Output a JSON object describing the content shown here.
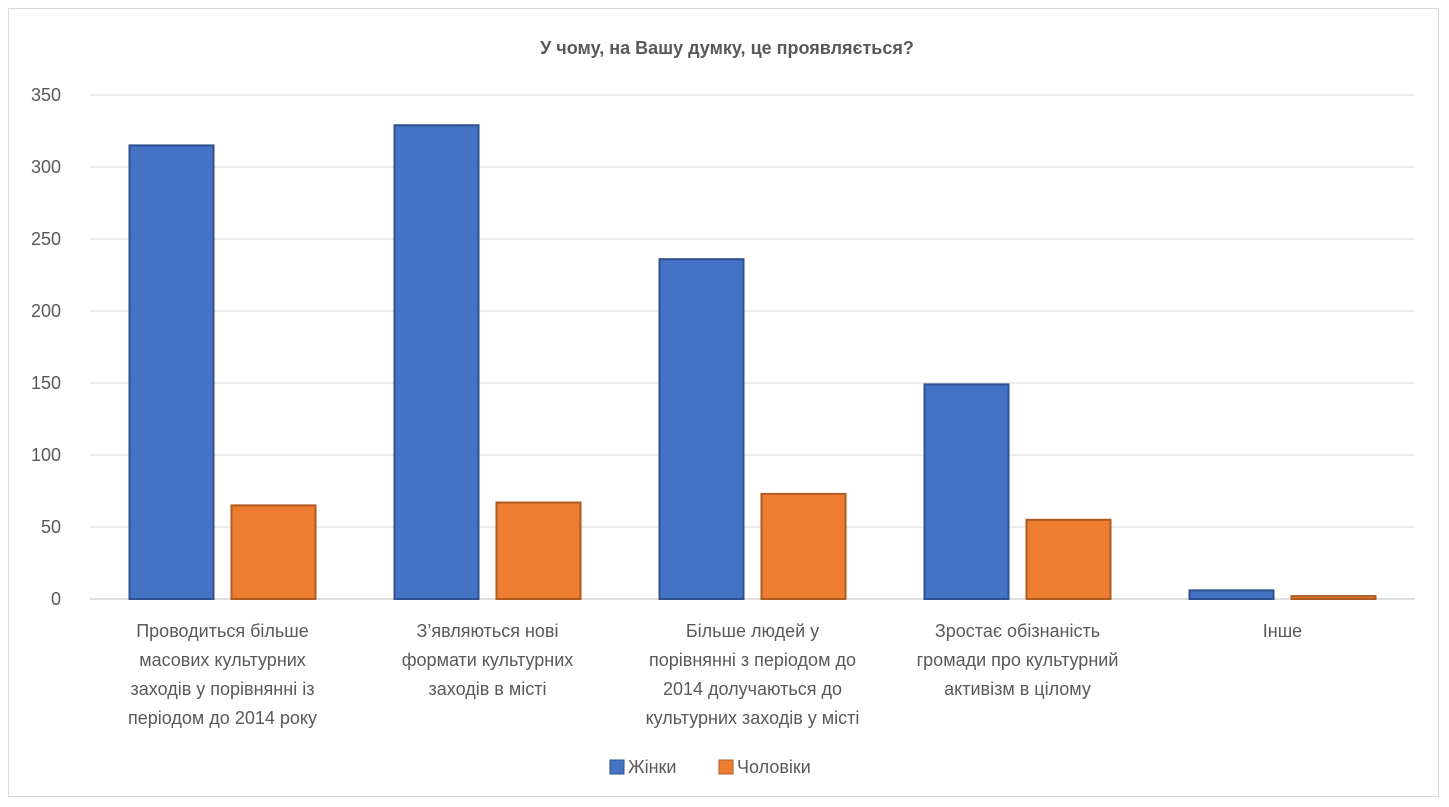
{
  "chart_data": {
    "type": "bar",
    "title": "У чому, на Вашу думку, це проявляється?",
    "categories": [
      [
        "Проводиться більше",
        "масових культурних",
        "заходів у порівнянні із",
        "періодом до 2014 року"
      ],
      [
        "З’являються нові",
        "формати культурних",
        "заходів в місті"
      ],
      [
        "Більше людей у",
        "порівнянні з періодом до",
        "2014 долучаються до",
        "культурних заходів у місті"
      ],
      [
        "Зростає обізнаність",
        "громади про культурний",
        "активізм в цілому"
      ],
      [
        "Інше"
      ]
    ],
    "series": [
      {
        "name": "Жінки",
        "color": "#4472C4",
        "stroke": "#2F528F",
        "values": [
          315,
          329,
          236,
          149,
          6
        ]
      },
      {
        "name": "Чоловіки",
        "color": "#ED7D31",
        "stroke": "#AE5A21",
        "values": [
          65,
          67,
          73,
          55,
          2
        ]
      }
    ],
    "ylim": [
      0,
      350
    ],
    "yticks": [
      0,
      50,
      100,
      150,
      200,
      250,
      300,
      350
    ],
    "grid": true,
    "legend_position": "bottom"
  }
}
